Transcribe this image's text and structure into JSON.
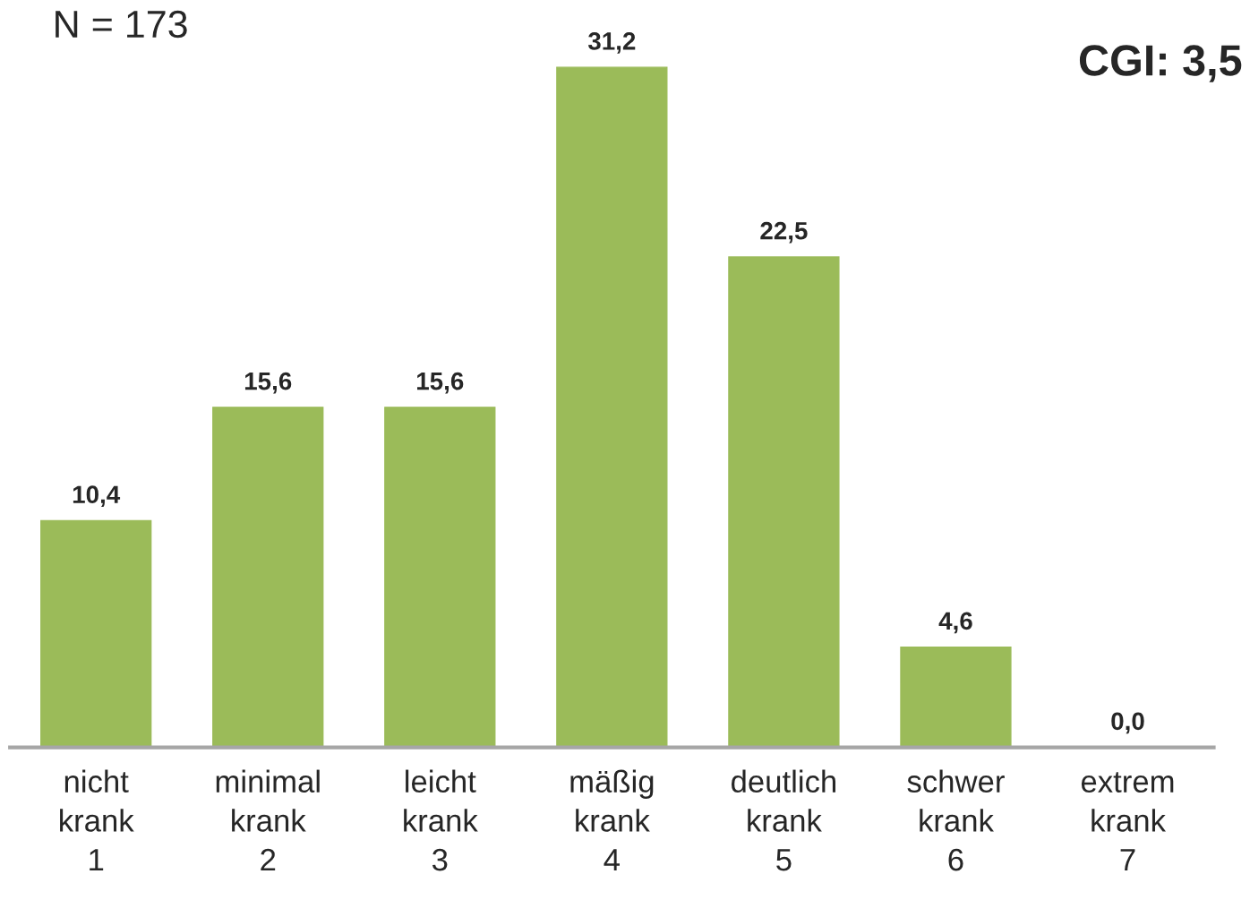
{
  "chart_data": {
    "type": "bar",
    "title": "N = 173",
    "annotations": [
      "CGI: 3,5"
    ],
    "categories": [
      "nicht\nkrank\n1",
      "minimal\nkrank\n2",
      "leicht\nkrank\n3",
      "mäßig\nkrank\n4",
      "deutlich\nkrank\n5",
      "schwer\nkrank\n6",
      "extrem\nkrank\n7"
    ],
    "values": [
      10.4,
      15.6,
      15.6,
      31.2,
      22.5,
      4.6,
      0.0
    ],
    "value_labels": [
      "10,4",
      "15,6",
      "15,6",
      "31,2",
      "22,5",
      "4,6",
      "0,0"
    ],
    "color": "#9bbb59",
    "grid": false,
    "legend": false
  }
}
